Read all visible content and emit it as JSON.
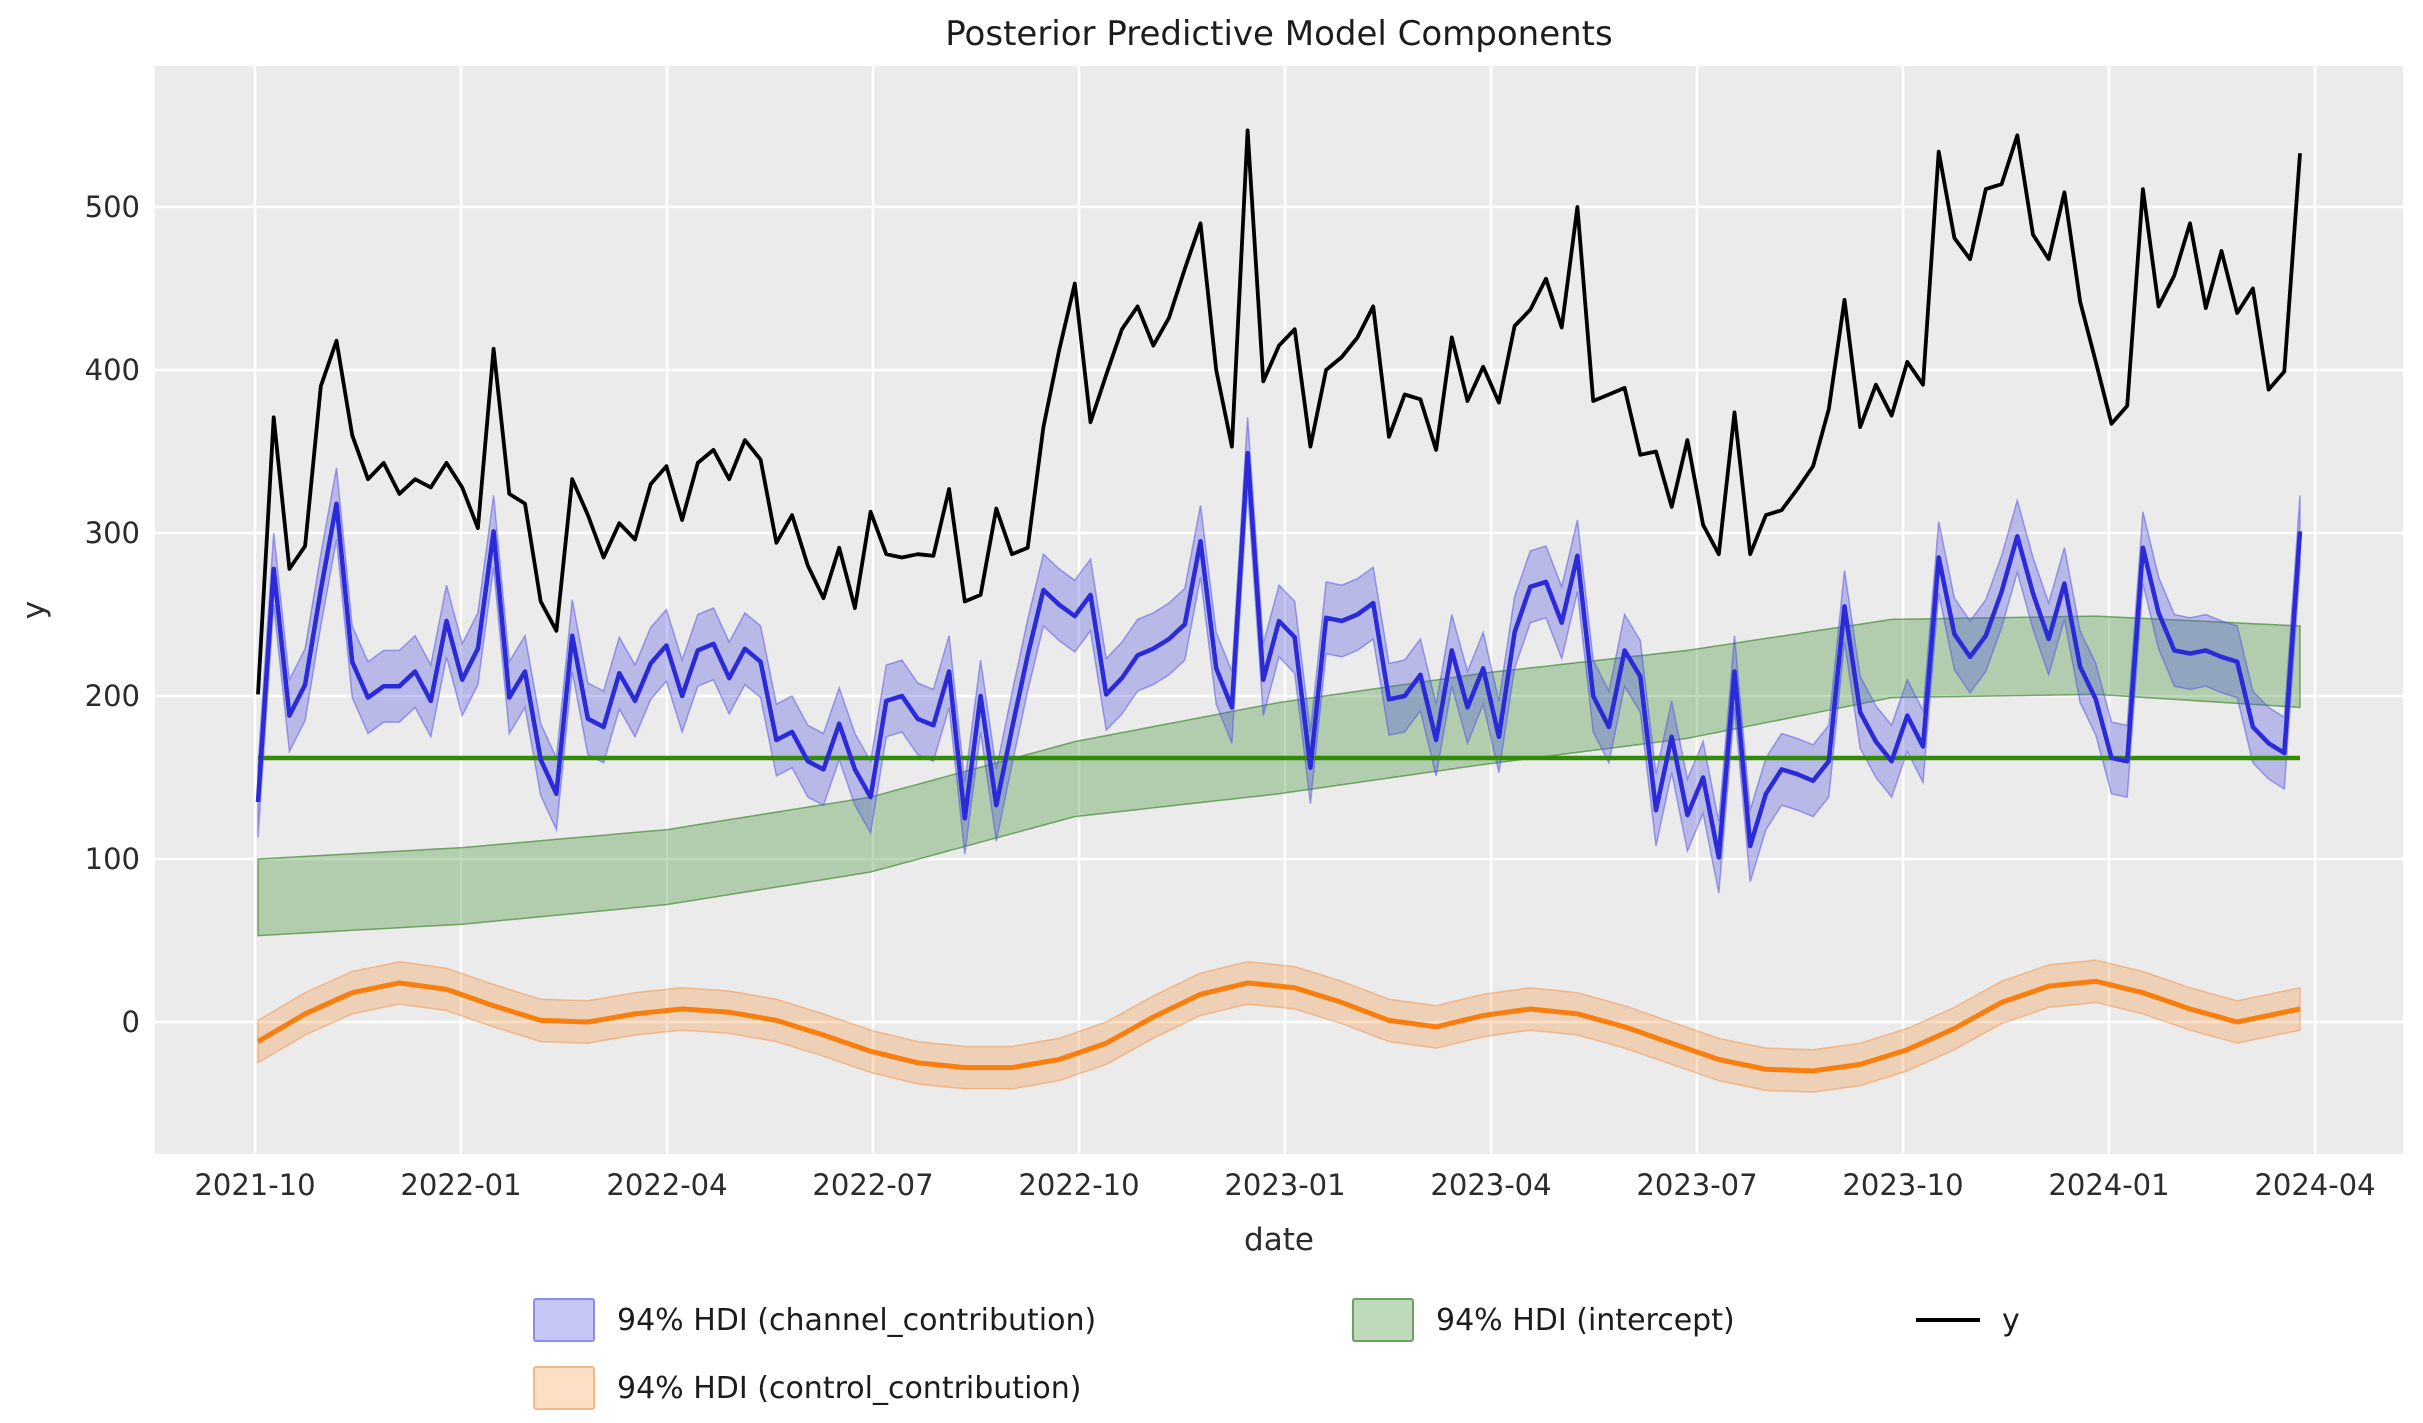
{
  "title": "Posterior Predictive Model Components",
  "axes": {
    "xlabel": "date",
    "ylabel": "y",
    "x_tick_labels": [
      "2021-10",
      "2022-01",
      "2022-04",
      "2022-07",
      "2022-10",
      "2023-01",
      "2023-04",
      "2023-07",
      "2023-10",
      "2024-01",
      "2024-04"
    ],
    "y_tick_labels": [
      "0",
      "100",
      "200",
      "300",
      "400",
      "500"
    ],
    "y_tick_values": [
      0,
      100,
      200,
      300,
      400,
      500
    ]
  },
  "legend": {
    "channel": "94% HDI (channel_contribution)",
    "intercept": "94% HDI (intercept)",
    "y_series": "y",
    "control": "94% HDI (control_contribution)"
  },
  "colors": {
    "plot_bg": "#ebebeb",
    "grid": "#ffffff",
    "y_line": "#000000",
    "channel_line": "#2a2ad9",
    "channel_band": "rgba(80,80,228,0.32)",
    "channel_band_edge": "rgba(80,80,228,0.5)",
    "intercept_band": "rgba(72,148,56,0.35)",
    "intercept_band_edge": "rgba(60,130,45,0.65)",
    "intercept_line": "#338a06",
    "control_line": "#f87e0e",
    "control_band": "rgba(248,140,50,0.28)",
    "control_band_edge": "rgba(244,150,80,0.55)"
  },
  "chart_data": {
    "type": "line",
    "title": "Posterior Predictive Model Components",
    "xlabel": "date",
    "ylabel": "y",
    "x_start_date": "2021-10-03",
    "x_step_days": 7,
    "n_points": 131,
    "ylim": [
      -80,
      584
    ],
    "grid": true,
    "legend_position": "bottom",
    "series": [
      {
        "name": "y",
        "style": "black line",
        "values": [
          201,
          371,
          278,
          292,
          390,
          418,
          360,
          333,
          343,
          324,
          333,
          328,
          343,
          328,
          303,
          413,
          324,
          318,
          258,
          240,
          333,
          311,
          285,
          306,
          296,
          330,
          341,
          308,
          343,
          351,
          333,
          357,
          345,
          294,
          311,
          280,
          260,
          291,
          254,
          313,
          287,
          285,
          287,
          286,
          327,
          258,
          262,
          315,
          287,
          291,
          365,
          412,
          453,
          368,
          397,
          425,
          439,
          415,
          432,
          462,
          490,
          400,
          353,
          547,
          393,
          415,
          425,
          353,
          400,
          408,
          420,
          439,
          359,
          385,
          382,
          351,
          420,
          381,
          402,
          380,
          427,
          437,
          456,
          426,
          500,
          381,
          385,
          389,
          348,
          350,
          316,
          357,
          305,
          287,
          374,
          287,
          311,
          314,
          327,
          341,
          376,
          443,
          365,
          391,
          372,
          405,
          391,
          534,
          481,
          468,
          511,
          514,
          544,
          483,
          468,
          509,
          442,
          405,
          367,
          378,
          511,
          439,
          458,
          490,
          438,
          473,
          435,
          450,
          388,
          399,
          533
        ]
      },
      {
        "name": "channel_contribution_mean",
        "style": "blue line with 94% HDI band",
        "hdi_half_width": 22,
        "values": [
          135,
          278,
          188,
          207,
          265,
          318,
          221,
          199,
          206,
          206,
          215,
          197,
          246,
          210,
          229,
          301,
          199,
          215,
          161,
          140,
          237,
          186,
          181,
          214,
          197,
          220,
          231,
          200,
          228,
          232,
          211,
          229,
          221,
          173,
          178,
          160,
          155,
          183,
          155,
          138,
          197,
          200,
          186,
          182,
          215,
          125,
          200,
          133,
          180,
          225,
          265,
          256,
          249,
          262,
          201,
          211,
          225,
          229,
          235,
          244,
          295,
          217,
          193,
          349,
          210,
          246,
          236,
          156,
          248,
          246,
          250,
          257,
          198,
          200,
          213,
          173,
          228,
          193,
          217,
          175,
          239,
          267,
          270,
          245,
          286,
          200,
          181,
          228,
          212,
          130,
          175,
          127,
          150,
          101,
          215,
          108,
          140,
          155,
          152,
          148,
          160,
          255,
          190,
          172,
          160,
          188,
          169,
          285,
          238,
          224,
          237,
          264,
          298,
          263,
          235,
          269,
          218,
          198,
          162,
          160,
          291,
          251,
          228,
          226,
          228,
          224,
          221,
          181,
          171,
          165,
          301
        ]
      },
      {
        "name": "intercept_hdi",
        "style": "green band, rising",
        "knots_week_lo_hi": [
          [
            0,
            53,
            100
          ],
          [
            13,
            60,
            107
          ],
          [
            26,
            72,
            118
          ],
          [
            39,
            92,
            138
          ],
          [
            52,
            126,
            172
          ],
          [
            65,
            140,
            196
          ],
          [
            78,
            158,
            214
          ],
          [
            91,
            174,
            228
          ],
          [
            104,
            199,
            247
          ],
          [
            117,
            201,
            249
          ],
          [
            130,
            193,
            243
          ]
        ]
      },
      {
        "name": "intercept_mean_line",
        "style": "dark green horizontal line",
        "value": 162
      },
      {
        "name": "control_contribution_mean",
        "style": "orange line with 94% HDI band",
        "hdi_half_width": 13,
        "knots_week_val": [
          [
            0,
            -12
          ],
          [
            3,
            5
          ],
          [
            6,
            18
          ],
          [
            9,
            24
          ],
          [
            12,
            20
          ],
          [
            15,
            10
          ],
          [
            18,
            1
          ],
          [
            21,
            0
          ],
          [
            24,
            5
          ],
          [
            27,
            8
          ],
          [
            30,
            6
          ],
          [
            33,
            1
          ],
          [
            36,
            -8
          ],
          [
            39,
            -18
          ],
          [
            42,
            -25
          ],
          [
            45,
            -28
          ],
          [
            48,
            -28
          ],
          [
            51,
            -23
          ],
          [
            54,
            -13
          ],
          [
            57,
            3
          ],
          [
            60,
            17
          ],
          [
            63,
            24
          ],
          [
            66,
            21
          ],
          [
            69,
            12
          ],
          [
            72,
            1
          ],
          [
            75,
            -3
          ],
          [
            78,
            4
          ],
          [
            81,
            8
          ],
          [
            84,
            5
          ],
          [
            87,
            -3
          ],
          [
            90,
            -13
          ],
          [
            93,
            -23
          ],
          [
            96,
            -29
          ],
          [
            99,
            -30
          ],
          [
            102,
            -26
          ],
          [
            105,
            -17
          ],
          [
            108,
            -4
          ],
          [
            111,
            12
          ],
          [
            114,
            22
          ],
          [
            117,
            25
          ],
          [
            120,
            18
          ],
          [
            123,
            8
          ],
          [
            126,
            0
          ],
          [
            129,
            6
          ],
          [
            130,
            8
          ]
        ]
      }
    ]
  }
}
